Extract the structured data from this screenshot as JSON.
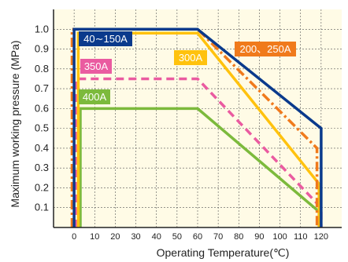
{
  "chart_data": {
    "type": "line",
    "title": "",
    "xlabel": "Operating Temperature(℃)",
    "ylabel": "Maximum working pressure (MPa)",
    "xlim": [
      -10,
      130
    ],
    "ylim": [
      0,
      1.1
    ],
    "x_ticks": [
      0,
      10,
      20,
      30,
      40,
      50,
      60,
      70,
      80,
      90,
      100,
      110,
      120
    ],
    "y_ticks": [
      0.1,
      0.2,
      0.3,
      0.4,
      0.5,
      0.6,
      0.7,
      0.8,
      0.9,
      1.0
    ],
    "grid": true,
    "background": "#fffbe6",
    "series": [
      {
        "name": "40∼150A",
        "color": "#0a3a8c",
        "style": "solid",
        "x": [
          0,
          0,
          60,
          120,
          120
        ],
        "y": [
          0,
          1.0,
          1.0,
          0.5,
          0
        ]
      },
      {
        "name": "200、250A",
        "color": "#f07a1c",
        "style": "dashdot",
        "x": [
          -1,
          -1,
          60,
          118,
          118
        ],
        "y": [
          0,
          1.0,
          1.0,
          0.4,
          0
        ]
      },
      {
        "name": "300A",
        "color": "#ffc20e",
        "style": "solid",
        "x": [
          2,
          2,
          60,
          119,
          119
        ],
        "y": [
          0,
          0.98,
          0.98,
          0.22,
          0
        ]
      },
      {
        "name": "350A",
        "color": "#ea5ba0",
        "style": "dashed",
        "x": [
          1,
          1,
          60,
          120,
          120
        ],
        "y": [
          0,
          0.75,
          0.75,
          0.1,
          0
        ]
      },
      {
        "name": "400A",
        "color": "#7cba3c",
        "style": "solid",
        "x": [
          3,
          3,
          60,
          119,
          119
        ],
        "y": [
          0,
          0.6,
          0.6,
          0.08,
          0
        ]
      }
    ],
    "labels": [
      {
        "text": "40∼150A",
        "series": 0
      },
      {
        "text": "200、250A",
        "series": 1
      },
      {
        "text": "300A",
        "series": 2
      },
      {
        "text": "350A",
        "series": 3
      },
      {
        "text": "400A",
        "series": 4
      }
    ]
  }
}
